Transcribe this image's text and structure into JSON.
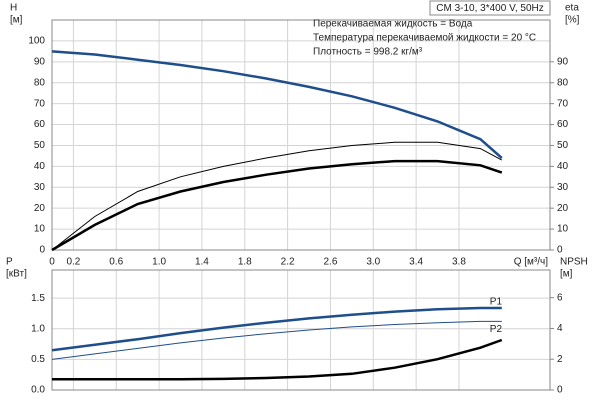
{
  "chart_data": [
    {
      "type": "line",
      "title": "CM 3-10, 3*400 V, 50Hz",
      "annotations": [
        "Перекачиваемая жидкость = Вода",
        "Температура перекачиваемой жидкости = 20 °C",
        "Плотность = 998.2 кг/м³"
      ],
      "ylabel": [
        "H",
        "[м]"
      ],
      "y2label": [
        "eta",
        "[%]"
      ],
      "xlabel": "Q [м³/ч]",
      "x": [
        0,
        0.4,
        0.8,
        1.2,
        1.6,
        2.0,
        2.4,
        2.8,
        3.2,
        3.6,
        4.0,
        4.2
      ],
      "series": [
        {
          "color": "#1f4e8c",
          "width": 2.5,
          "values": [
            95,
            93.5,
            91,
            88.5,
            85.5,
            82,
            78,
            73.5,
            68,
            61.5,
            53,
            44
          ]
        },
        {
          "color": "#000000",
          "width": 1,
          "axis": "y2",
          "values": [
            0,
            16,
            28,
            35,
            40,
            44,
            47.5,
            50,
            51.5,
            51.5,
            48.5,
            43
          ]
        },
        {
          "color": "#000000",
          "width": 2.5,
          "axis": "y2",
          "values": [
            0,
            12,
            22,
            28,
            32.5,
            36,
            39,
            41,
            42.5,
            42.5,
            40.5,
            37
          ]
        }
      ],
      "xlim": [
        0,
        4.65
      ],
      "xticks": [
        0,
        0.2,
        0.6,
        {
          "value": 1,
          "label": "1.0"
        },
        1.4,
        1.8,
        2.2,
        2.6,
        {
          "value": 3,
          "label": "3.0"
        },
        3.4,
        3.8
      ],
      "ylim": [
        0,
        110
      ],
      "yticks": [
        0,
        10,
        20,
        30,
        40,
        50,
        60,
        70,
        80,
        90,
        100
      ],
      "y2lim": [
        0,
        110
      ],
      "y2ticks": [
        0,
        10,
        20,
        30,
        40,
        50,
        60,
        70,
        80,
        90
      ],
      "grid": true
    },
    {
      "type": "line",
      "ylabel": [
        "P",
        "[кВт]"
      ],
      "y2label": [
        "NPSH",
        "[м]"
      ],
      "x": [
        0,
        0.4,
        0.8,
        1.2,
        1.6,
        2.0,
        2.4,
        2.8,
        3.2,
        3.6,
        4.0,
        4.2
      ],
      "series": [
        {
          "name": "P1",
          "color": "#1f4e8c",
          "width": 2.5,
          "values": [
            0.65,
            0.74,
            0.83,
            0.93,
            1.02,
            1.1,
            1.17,
            1.23,
            1.28,
            1.32,
            1.34,
            1.34
          ]
        },
        {
          "name": "P2",
          "color": "#1f4e8c",
          "width": 1,
          "values": [
            0.5,
            0.59,
            0.68,
            0.77,
            0.85,
            0.92,
            0.98,
            1.03,
            1.07,
            1.1,
            1.12,
            1.12
          ]
        },
        {
          "color": "#000000",
          "width": 2.5,
          "axis": "y2",
          "values": [
            0.7,
            0.7,
            0.7,
            0.7,
            0.72,
            0.78,
            0.88,
            1.05,
            1.45,
            2.0,
            2.75,
            3.25
          ]
        }
      ],
      "xlim": [
        0,
        4.65
      ],
      "ylim": [
        0,
        1.96
      ],
      "yticks": [
        {
          "value": 0,
          "label": "0.0"
        },
        0.5,
        {
          "value": 1,
          "label": "1.0"
        },
        1.5
      ],
      "y2lim": [
        0,
        7.8
      ],
      "y2ticks": [
        0,
        2,
        4,
        6
      ],
      "grid": true
    }
  ]
}
